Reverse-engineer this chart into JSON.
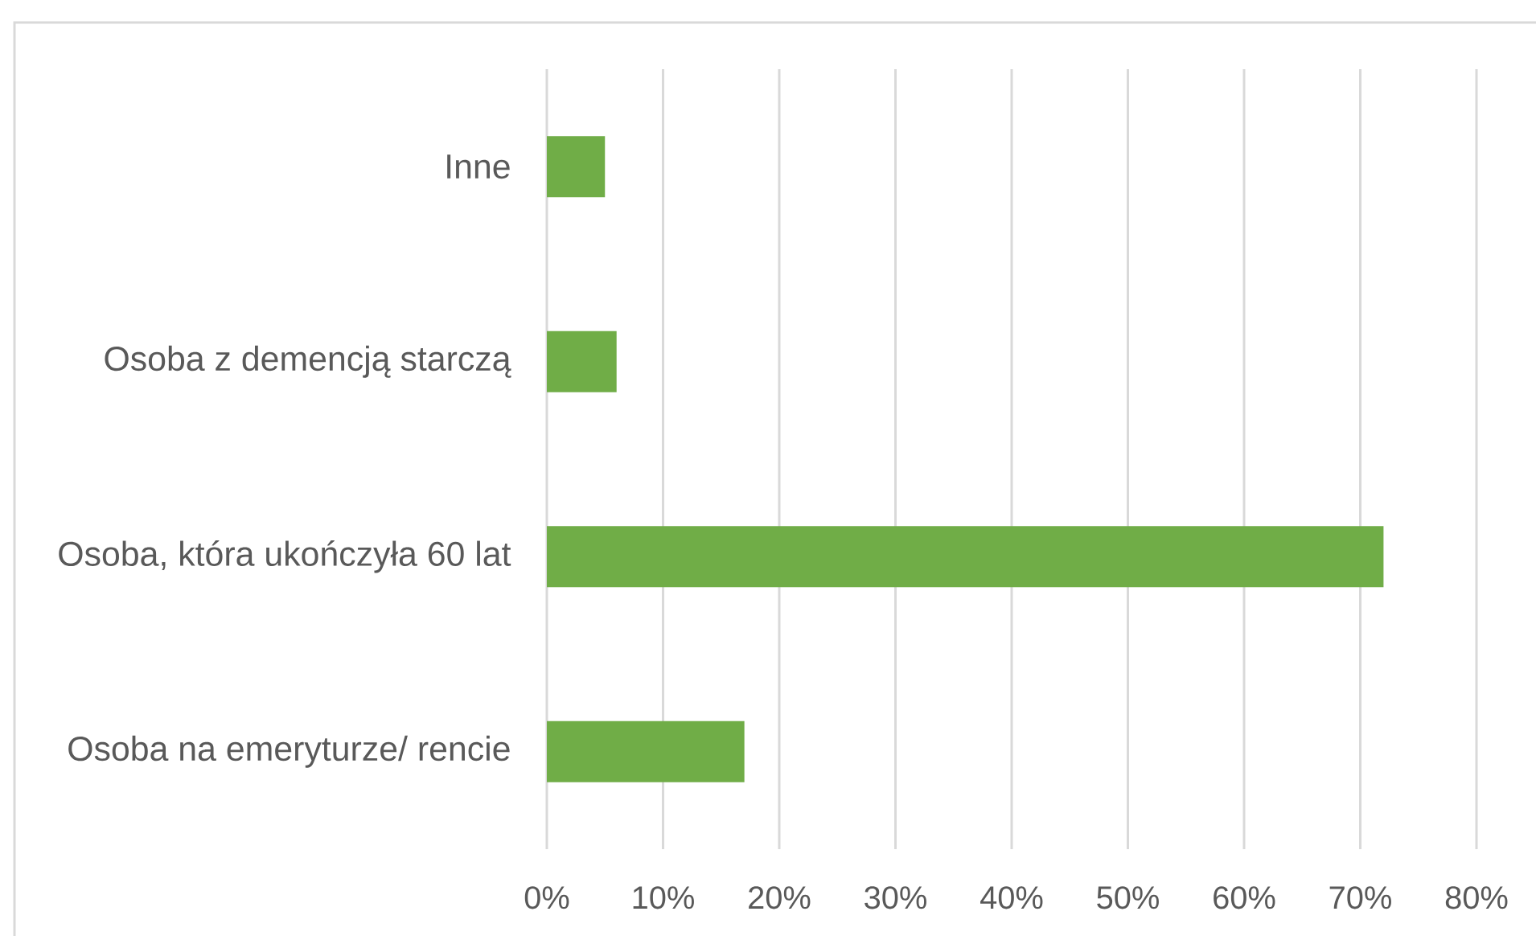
{
  "chart_data": {
    "type": "bar",
    "orientation": "horizontal",
    "categories": [
      "Inne",
      "Osoba z demencją starczą",
      "Osoba, która ukończyła 60 lat",
      "Osoba na emeryturze/ rencie"
    ],
    "values": [
      5,
      6,
      72,
      17
    ],
    "color": "#70ad47",
    "xlim": [
      0,
      80
    ],
    "xticks": [
      {
        "value": 0,
        "label": "0%"
      },
      {
        "value": 10,
        "label": "10%"
      },
      {
        "value": 20,
        "label": "20%"
      },
      {
        "value": 30,
        "label": "30%"
      },
      {
        "value": 40,
        "label": "40%"
      },
      {
        "value": 50,
        "label": "50%"
      },
      {
        "value": 60,
        "label": "60%"
      },
      {
        "value": 70,
        "label": "70%"
      },
      {
        "value": 80,
        "label": "80%"
      }
    ],
    "grid": "x"
  }
}
